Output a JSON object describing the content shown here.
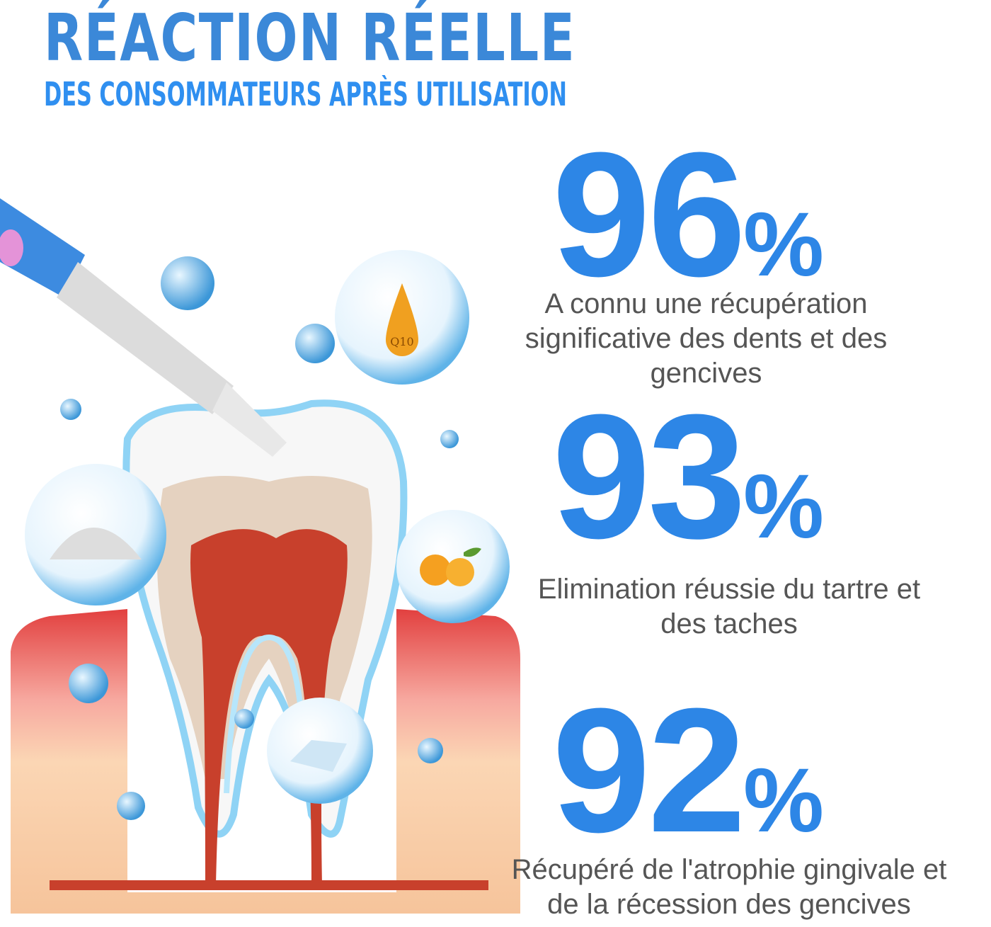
{
  "header": {
    "title": "RÉACTION RÉELLE",
    "subtitle": "DES CONSOMMATEURS APRÈS UTILISATION"
  },
  "stats": [
    {
      "value": "96",
      "unit": "%",
      "caption": "A connu une récupération significative des dents et des gencives"
    },
    {
      "value": "93",
      "unit": "%",
      "caption": "Elimination réussie du tartre et des taches"
    },
    {
      "value": "92",
      "unit": "%",
      "caption": "Récupéré de l'atrophie gingivale et de la récession des gencives"
    }
  ],
  "illustration": {
    "drop_label": "Q10"
  },
  "colors": {
    "title": "#3b88d8",
    "stat": "#2d86e6",
    "caption": "#555555",
    "gum": "#e85a5a",
    "pulp": "#c8402c"
  }
}
